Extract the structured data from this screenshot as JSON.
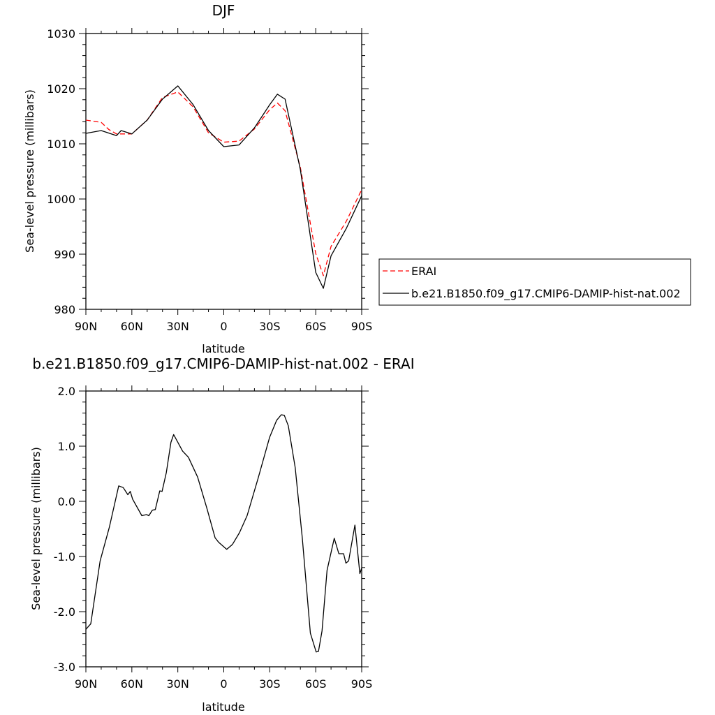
{
  "chart_data": [
    {
      "type": "line",
      "title": "DJF",
      "xlabel": "latitude",
      "ylabel": "Sea-level pressure (millibars)",
      "xlim": [
        90,
        -90
      ],
      "ylim": [
        980,
        1030
      ],
      "x_ticks": [
        90,
        60,
        30,
        0,
        -30,
        -60,
        -90
      ],
      "x_tick_labels": [
        "90N",
        "60N",
        "30N",
        "0",
        "30S",
        "60S",
        "90S"
      ],
      "y_ticks": [
        980,
        990,
        1000,
        1010,
        1020,
        1030
      ],
      "y_tick_labels": [
        "980",
        "990",
        "1000",
        "1010",
        "1020",
        "1030"
      ],
      "grid": false,
      "legend_placement": "right, outside",
      "series": [
        {
          "name": "ERAI",
          "color": "#ff0000",
          "dash": "dashed",
          "x": [
            90,
            80,
            75,
            70,
            60,
            50,
            40,
            30,
            20,
            10,
            0,
            -10,
            -20,
            -30,
            -35,
            -40,
            -50,
            -60,
            -65,
            -70,
            -80,
            -90
          ],
          "y": [
            1014.3,
            1013.9,
            1012.6,
            1011.8,
            1011.8,
            1014.3,
            1018.4,
            1019.4,
            1016.7,
            1012.0,
            1010.3,
            1010.5,
            1012.7,
            1016.2,
            1017.4,
            1016.0,
            1005.7,
            990.1,
            986.1,
            991.4,
            996.0,
            1001.7
          ]
        },
        {
          "name": "b.e21.B1850.f09_g17.CMIP6-DAMIP-hist-nat.002",
          "color": "#000000",
          "dash": "solid",
          "x": [
            90,
            80,
            70,
            67,
            60,
            50,
            40,
            30,
            20,
            10,
            0,
            -10,
            -20,
            -30,
            -35,
            -40,
            -50,
            -60,
            -65,
            -70,
            -80,
            -90
          ],
          "y": [
            1011.9,
            1012.4,
            1011.5,
            1012.4,
            1011.8,
            1014.3,
            1018.1,
            1020.5,
            1017.1,
            1012.4,
            1009.5,
            1009.8,
            1012.9,
            1017.1,
            1019.0,
            1018.1,
            1005.3,
            986.7,
            983.8,
            989.7,
            994.7,
            1000.6
          ]
        }
      ]
    },
    {
      "type": "line",
      "title": "b.e21.B1850.f09_g17.CMIP6-DAMIP-hist-nat.002 - ERAI",
      "xlabel": "latitude",
      "ylabel": "Sea-level pressure (millibars)",
      "xlim": [
        90,
        -90
      ],
      "ylim": [
        -3.0,
        2.0
      ],
      "x_ticks": [
        90,
        60,
        30,
        0,
        -30,
        -60,
        -90
      ],
      "x_tick_labels": [
        "90N",
        "60N",
        "30N",
        "0",
        "30S",
        "60S",
        "90S"
      ],
      "y_ticks": [
        -3,
        -2,
        -1,
        0,
        1,
        2
      ],
      "y_tick_labels": [
        "-3.0",
        "-2.0",
        "-1.0",
        "0.0",
        "1.0",
        "2.0"
      ],
      "grid": false,
      "series": [
        {
          "color": "#000000",
          "x": [
            90,
            86.8,
            80.7,
            74.7,
            68.6,
            65.6,
            62.6,
            61.0,
            59.5,
            53.5,
            50.4,
            48.9,
            46.6,
            44.7,
            41.8,
            40.3,
            37.5,
            34.5,
            32.7,
            26.9,
            23.1,
            17.1,
            11.0,
            5.7,
            3.4,
            -1.9,
            -5.7,
            -10.2,
            -15.2,
            -22.4,
            -29.9,
            -34.5,
            -37.5,
            -39.5,
            -42.1,
            -46.6,
            -51.2,
            -56.5,
            -60.3,
            -61.8,
            -64.1,
            -67.4,
            -72.1,
            -75.1,
            -78.2,
            -79.7,
            -81.5,
            -85.6,
            -88.8,
            -90
          ],
          "y": [
            -2.32,
            -2.22,
            -1.08,
            -0.47,
            0.28,
            0.25,
            0.12,
            0.18,
            0.04,
            -0.26,
            -0.24,
            -0.26,
            -0.16,
            -0.15,
            0.19,
            0.18,
            0.52,
            1.07,
            1.21,
            0.91,
            0.8,
            0.44,
            -0.13,
            -0.66,
            -0.74,
            -0.87,
            -0.78,
            -0.57,
            -0.26,
            0.42,
            1.16,
            1.47,
            1.57,
            1.56,
            1.37,
            0.61,
            -0.66,
            -2.39,
            -2.73,
            -2.72,
            -2.35,
            -1.25,
            -0.67,
            -0.95,
            -0.95,
            -1.12,
            -1.08,
            -0.43,
            -1.31,
            -1.21
          ]
        }
      ]
    }
  ]
}
